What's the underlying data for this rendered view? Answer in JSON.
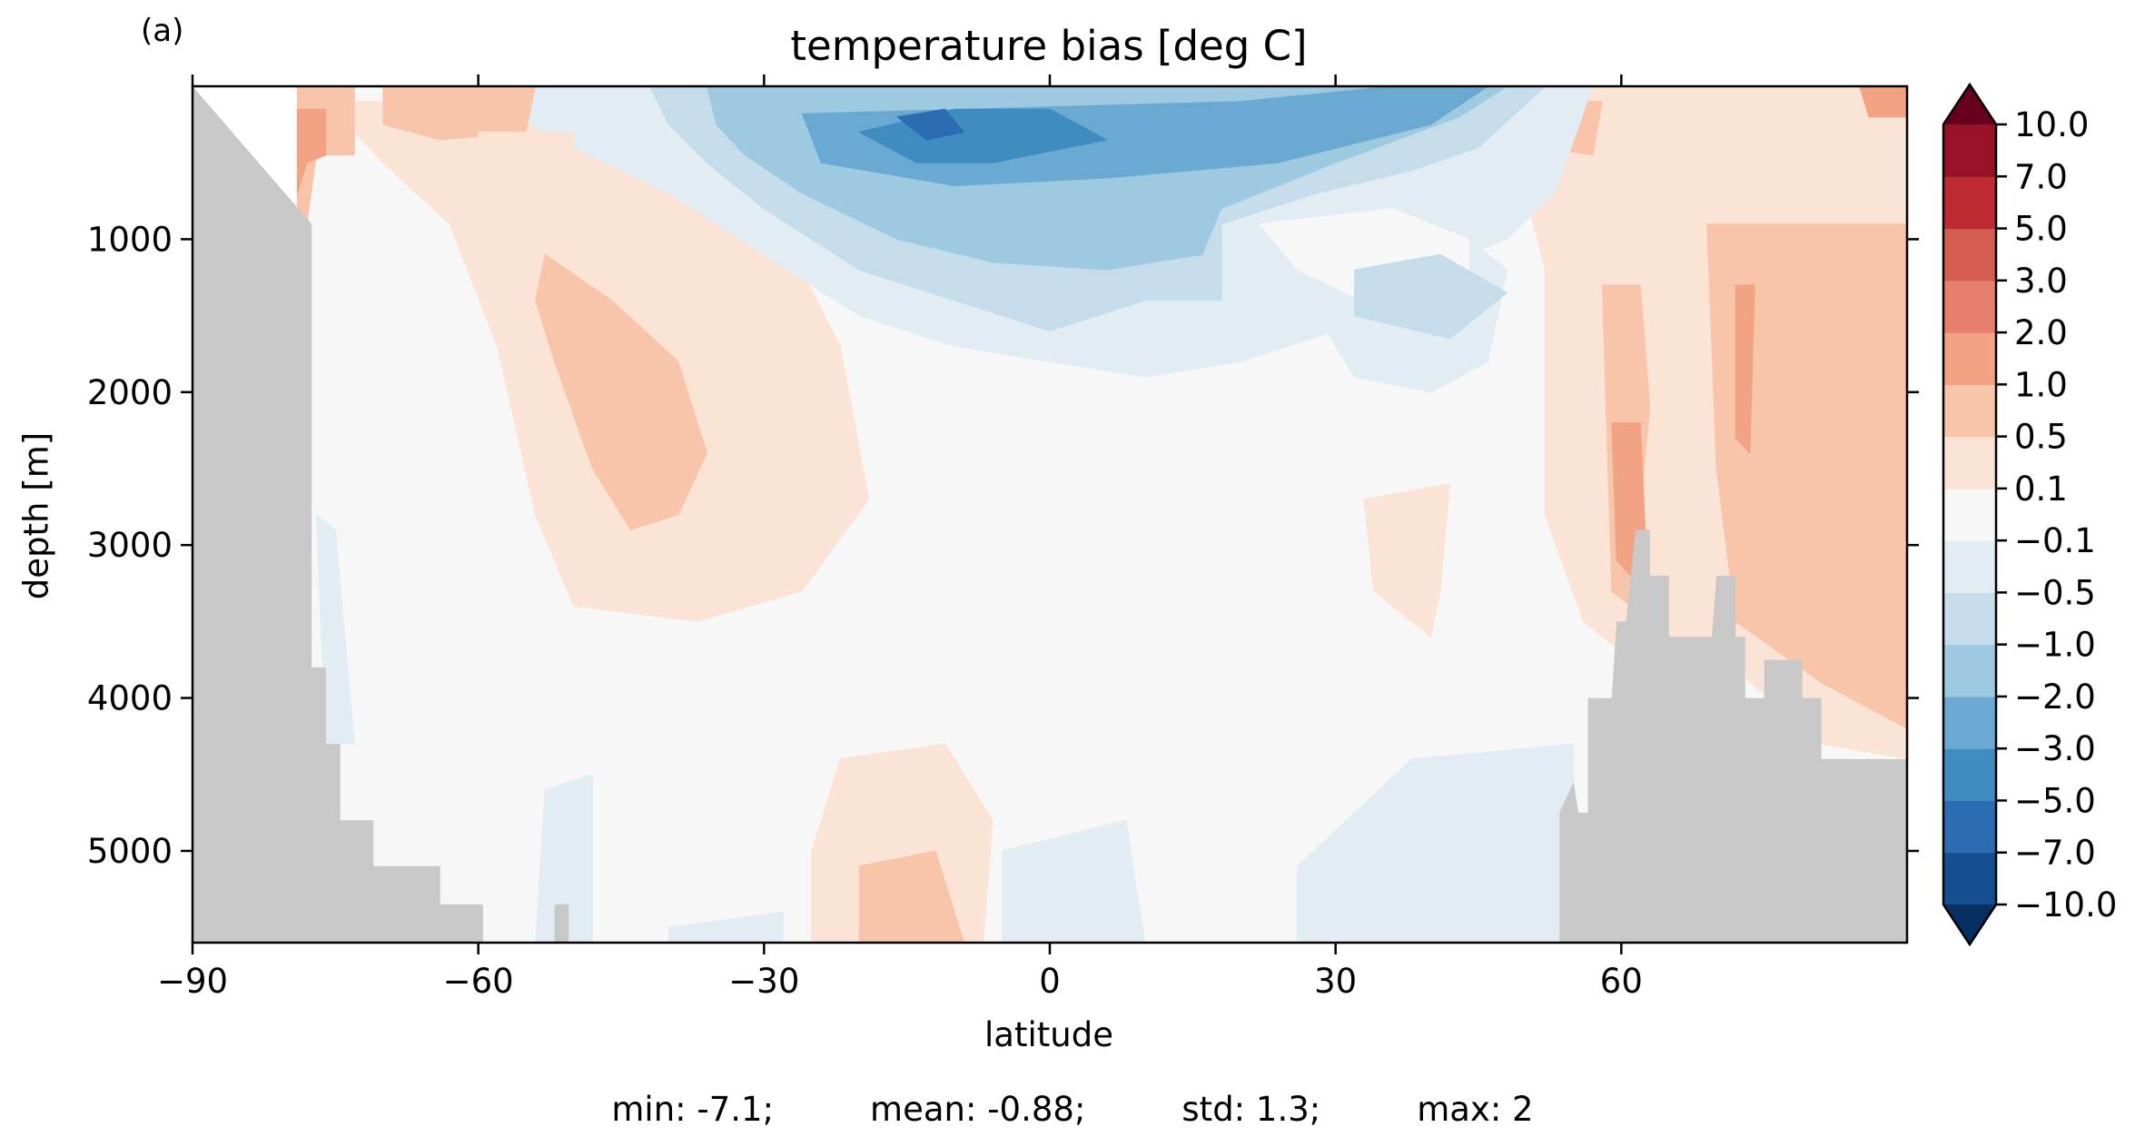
{
  "panel_label": "(a)",
  "chart_data": {
    "type": "heatmap",
    "title": "temperature bias [deg C]",
    "xlabel": "latitude",
    "ylabel": "depth [m]",
    "xlim": [
      -90,
      90
    ],
    "ylim": [
      5600,
      0
    ],
    "xticks": [
      -90,
      -60,
      -30,
      0,
      30,
      60
    ],
    "xtick_labels": [
      "−90",
      "−60",
      "−30",
      "0",
      "30",
      "60"
    ],
    "yticks": [
      1000,
      2000,
      3000,
      4000,
      5000
    ],
    "ytick_labels": [
      "1000",
      "2000",
      "3000",
      "4000",
      "5000"
    ],
    "colorbar": {
      "levels": [
        -10.0,
        -7.0,
        -5.0,
        -3.0,
        -2.0,
        -1.0,
        -0.5,
        -0.1,
        0.1,
        0.5,
        1.0,
        2.0,
        3.0,
        5.0,
        7.0,
        10.0
      ],
      "tick_labels": [
        "−10.0",
        "−7.0",
        "−5.0",
        "−3.0",
        "−2.0",
        "−1.0",
        "−0.5",
        "−0.1",
        "0.1",
        "0.5",
        "1.0",
        "2.0",
        "3.0",
        "5.0",
        "7.0",
        "10.0"
      ],
      "colors": [
        "#053061",
        "#14508f",
        "#2b6cb2",
        "#3f8cc1",
        "#6aaad2",
        "#9ecae1",
        "#c5dcea",
        "#e1ecf3",
        "#f7f7f7",
        "#fbe3d5",
        "#f8c5ab",
        "#f2a384",
        "#e7806a",
        "#d45f4e",
        "#bf2b32",
        "#961225",
        "#67001f"
      ],
      "extend": "both"
    },
    "land_color": "#c8c8c8",
    "bathymetry": [
      [
        -90,
        0
      ],
      [
        -77.5,
        900
      ],
      [
        -77.5,
        3800
      ],
      [
        -76,
        3800
      ],
      [
        -76,
        4300
      ],
      [
        -74.5,
        4300
      ],
      [
        -74.5,
        4800
      ],
      [
        -71,
        4800
      ],
      [
        -71,
        5100
      ],
      [
        -64,
        5100
      ],
      [
        -64,
        5350
      ],
      [
        -59.5,
        5350
      ],
      [
        -59.5,
        5600
      ],
      [
        -52,
        5600
      ],
      [
        -52,
        5350
      ],
      [
        -50.5,
        5350
      ],
      [
        -50.5,
        5600
      ],
      [
        53.5,
        5600
      ],
      [
        53.5,
        4750
      ],
      [
        55,
        4550
      ],
      [
        55.5,
        4750
      ],
      [
        56.5,
        4750
      ],
      [
        56.5,
        4000
      ],
      [
        59,
        4000
      ],
      [
        59.5,
        3500
      ],
      [
        60.5,
        3500
      ],
      [
        61.5,
        2900
      ],
      [
        63,
        2900
      ],
      [
        63,
        3200
      ],
      [
        65,
        3200
      ],
      [
        65,
        3600
      ],
      [
        69.5,
        3600
      ],
      [
        70,
        3200
      ],
      [
        72,
        3200
      ],
      [
        72,
        3600
      ],
      [
        73,
        3600
      ],
      [
        73,
        4000
      ],
      [
        75,
        4000
      ],
      [
        75,
        3750
      ],
      [
        79,
        3750
      ],
      [
        79,
        4000
      ],
      [
        81,
        4000
      ],
      [
        81,
        4400
      ],
      [
        90,
        4400
      ],
      [
        90,
        0
      ]
    ],
    "regions": [
      {
        "level": -0.1,
        "polygon": [
          [
            -79,
            0
          ],
          [
            90,
            0
          ],
          [
            90,
            5600
          ],
          [
            -79,
            5600
          ]
        ]
      },
      {
        "level": 0.1,
        "polygon": [
          [
            -76,
            100
          ],
          [
            -35,
            100
          ],
          [
            -22,
            1700
          ],
          [
            -19,
            2700
          ],
          [
            -26,
            3300
          ],
          [
            -37,
            3500
          ],
          [
            -50,
            3400
          ],
          [
            -54,
            2800
          ],
          [
            -58,
            1700
          ],
          [
            -63,
            900
          ],
          [
            -70,
            500
          ]
        ]
      },
      {
        "level": 0.5,
        "polygon": [
          [
            -53,
            1100
          ],
          [
            -46,
            1400
          ],
          [
            -39,
            1800
          ],
          [
            -36,
            2400
          ],
          [
            -39,
            2800
          ],
          [
            -44,
            2900
          ],
          [
            -48,
            2500
          ],
          [
            -52,
            1800
          ],
          [
            -54,
            1400
          ]
        ]
      },
      {
        "level": 0.1,
        "polygon": [
          [
            33,
            2700
          ],
          [
            42,
            2600
          ],
          [
            41,
            3300
          ],
          [
            40,
            3600
          ],
          [
            34,
            3300
          ]
        ]
      },
      {
        "level": 0.1,
        "polygon": [
          [
            53,
            0
          ],
          [
            90,
            0
          ],
          [
            90,
            4400
          ],
          [
            81,
            4300
          ],
          [
            68,
            3600
          ],
          [
            60,
            3700
          ],
          [
            56,
            3500
          ],
          [
            52,
            2800
          ],
          [
            52,
            1200
          ],
          [
            50,
            700
          ],
          [
            48,
            300
          ]
        ]
      },
      {
        "level": 0.5,
        "polygon": [
          [
            69,
            900
          ],
          [
            90,
            900
          ],
          [
            90,
            4200
          ],
          [
            81,
            3900
          ],
          [
            72,
            3500
          ],
          [
            70,
            2500
          ]
        ]
      },
      {
        "level": 0.5,
        "polygon": [
          [
            58,
            1300
          ],
          [
            62,
            1300
          ],
          [
            63,
            2100
          ],
          [
            61,
            3400
          ],
          [
            59,
            3300
          ]
        ]
      },
      {
        "level": 1.0,
        "polygon": [
          [
            59,
            2200
          ],
          [
            62,
            2200
          ],
          [
            62.5,
            2900
          ],
          [
            61,
            3200
          ],
          [
            59.5,
            3100
          ]
        ]
      },
      {
        "level": 1.0,
        "polygon": [
          [
            72,
            1300
          ],
          [
            74,
            1300
          ],
          [
            73.5,
            2400
          ],
          [
            72,
            2300
          ]
        ]
      },
      {
        "level": 0.5,
        "polygon": [
          [
            51,
            100
          ],
          [
            58,
            100
          ],
          [
            57,
            450
          ],
          [
            52,
            400
          ]
        ]
      },
      {
        "level": 0.1,
        "polygon": [
          [
            -22,
            4400
          ],
          [
            -11,
            4300
          ],
          [
            -6,
            4800
          ],
          [
            -7,
            5600
          ],
          [
            -25,
            5600
          ],
          [
            -25,
            5000
          ]
        ]
      },
      {
        "level": 0.5,
        "polygon": [
          [
            -20,
            5100
          ],
          [
            -12,
            5000
          ],
          [
            -9,
            5600
          ],
          [
            -20,
            5600
          ]
        ]
      },
      {
        "level": -0.5,
        "polygon": [
          [
            -53,
            4600
          ],
          [
            -48,
            4500
          ],
          [
            -48,
            5600
          ],
          [
            -54,
            5600
          ]
        ]
      },
      {
        "level": -0.5,
        "polygon": [
          [
            26,
            5100
          ],
          [
            38,
            4400
          ],
          [
            55,
            4300
          ],
          [
            55,
            5600
          ],
          [
            26,
            5600
          ]
        ]
      },
      {
        "level": -0.5,
        "polygon": [
          [
            -5,
            5000
          ],
          [
            8,
            4800
          ],
          [
            10,
            5600
          ],
          [
            -5,
            5600
          ]
        ]
      },
      {
        "level": -0.5,
        "polygon": [
          [
            -40,
            5500
          ],
          [
            -28,
            5400
          ],
          [
            -28,
            5600
          ],
          [
            -40,
            5600
          ]
        ]
      },
      {
        "level": -0.5,
        "polygon": [
          [
            -77,
            2800
          ],
          [
            -75,
            2900
          ],
          [
            -73,
            4300
          ],
          [
            -76,
            4300
          ]
        ]
      },
      {
        "level": -0.5,
        "polygon": [
          [
            -57,
            0
          ],
          [
            57,
            0
          ],
          [
            53,
            700
          ],
          [
            48,
            1000
          ],
          [
            40,
            1200
          ],
          [
            30,
            1600
          ],
          [
            20,
            1800
          ],
          [
            10,
            1900
          ],
          [
            0,
            1800
          ],
          [
            -10,
            1700
          ],
          [
            -20,
            1500
          ],
          [
            -30,
            1100
          ],
          [
            -40,
            700
          ],
          [
            -50,
            400
          ],
          [
            -56,
            200
          ]
        ]
      },
      {
        "level": -0.5,
        "polygon": [
          [
            22,
            900
          ],
          [
            28,
            600
          ],
          [
            38,
            700
          ],
          [
            48,
            1200
          ],
          [
            46,
            1800
          ],
          [
            40,
            2000
          ],
          [
            32,
            1900
          ],
          [
            28,
            1500
          ],
          [
            24,
            1200
          ]
        ]
      },
      {
        "level": -0.1,
        "polygon": [
          [
            22,
            900
          ],
          [
            36,
            800
          ],
          [
            44,
            1000
          ],
          [
            44,
            1300
          ],
          [
            36,
            1500
          ],
          [
            26,
            1200
          ]
        ]
      },
      {
        "level": -1.0,
        "polygon": [
          [
            -42,
            0
          ],
          [
            52,
            0
          ],
          [
            45,
            400
          ],
          [
            38,
            550
          ],
          [
            28,
            700
          ],
          [
            18,
            900
          ],
          [
            18,
            1400
          ],
          [
            10,
            1400
          ],
          [
            0,
            1600
          ],
          [
            -10,
            1400
          ],
          [
            -20,
            1200
          ],
          [
            -30,
            800
          ],
          [
            -36,
            500
          ],
          [
            -40,
            250
          ]
        ]
      },
      {
        "level": -1.0,
        "polygon": [
          [
            32,
            1200
          ],
          [
            41,
            1100
          ],
          [
            48,
            1350
          ],
          [
            42,
            1650
          ],
          [
            32,
            1500
          ]
        ]
      },
      {
        "level": -2.0,
        "polygon": [
          [
            -36,
            0
          ],
          [
            48,
            0
          ],
          [
            43,
            200
          ],
          [
            30,
            500
          ],
          [
            18,
            800
          ],
          [
            16,
            1100
          ],
          [
            6,
            1200
          ],
          [
            -6,
            1150
          ],
          [
            -16,
            1000
          ],
          [
            -26,
            700
          ],
          [
            -32,
            450
          ],
          [
            -35,
            250
          ]
        ]
      },
      {
        "level": -3.0,
        "polygon": [
          [
            -26,
            180
          ],
          [
            20,
            100
          ],
          [
            36,
            0
          ],
          [
            46,
            0
          ],
          [
            40,
            250
          ],
          [
            24,
            500
          ],
          [
            6,
            600
          ],
          [
            -10,
            650
          ],
          [
            -24,
            500
          ]
        ]
      },
      {
        "level": -5.0,
        "polygon": [
          [
            -20,
            300
          ],
          [
            -10,
            150
          ],
          [
            0,
            150
          ],
          [
            6,
            350
          ],
          [
            -6,
            500
          ],
          [
            -14,
            500
          ]
        ]
      },
      {
        "level": -7.0,
        "polygon": [
          [
            -16,
            200
          ],
          [
            -11,
            150
          ],
          [
            -9,
            300
          ],
          [
            -13,
            350
          ]
        ]
      },
      {
        "level": 0.5,
        "polygon": [
          [
            -79,
            0
          ],
          [
            -73,
            0
          ],
          [
            -73,
            450
          ],
          [
            -77,
            450
          ],
          [
            -78,
            900
          ],
          [
            -79,
            900
          ]
        ]
      },
      {
        "level": 1.0,
        "polygon": [
          [
            -79,
            150
          ],
          [
            -76,
            150
          ],
          [
            -76,
            450
          ],
          [
            -78,
            500
          ],
          [
            -79,
            700
          ]
        ]
      },
      {
        "level": 0.5,
        "polygon": [
          [
            -70,
            0
          ],
          [
            -54,
            0
          ],
          [
            -55,
            300
          ],
          [
            -64,
            350
          ],
          [
            -70,
            250
          ]
        ]
      },
      {
        "level": 0.1,
        "polygon": [
          [
            -60,
            300
          ],
          [
            -50,
            300
          ],
          [
            -50,
            500
          ],
          [
            -60,
            500
          ]
        ]
      },
      {
        "level": 1.0,
        "polygon": [
          [
            85,
            0
          ],
          [
            90,
            0
          ],
          [
            90,
            200
          ],
          [
            86,
            200
          ]
        ]
      }
    ]
  },
  "stats": {
    "min": "min: -7.1;",
    "mean": "mean: -0.88;",
    "std": "std: 1.3;",
    "max": "max: 2"
  }
}
